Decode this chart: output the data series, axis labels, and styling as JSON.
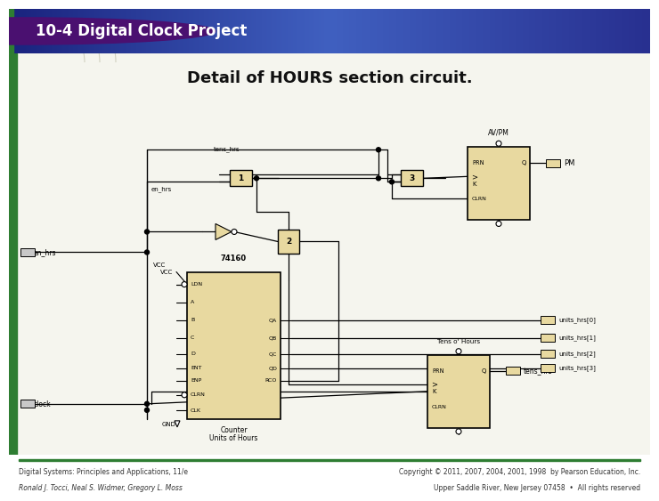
{
  "slide_title": "10-4 Digital Clock Project",
  "body_title": "Detail of HOURS section circuit.",
  "footer_left_line1": "Digital Systems: Principles and Applications, 11/e",
  "footer_left_line2": "Ronald J. Tocci, Neal S. Widmer, Gregory L. Moss",
  "footer_right_line1": "Copyright © 2011, 2007, 2004, 2001, 1998  by Pearson Education, Inc.",
  "footer_right_line2": "Upper Saddle River, New Jersey 07458  •  All rights reserved",
  "accent_color": "#2e7d32",
  "bullet_color": "#4a1070",
  "chip_fill": "#e8d9a0",
  "bg_color": "#f0f0e8",
  "wire_color": "#000000",
  "header_color1": "#1a237e",
  "header_color2": "#3949ab"
}
